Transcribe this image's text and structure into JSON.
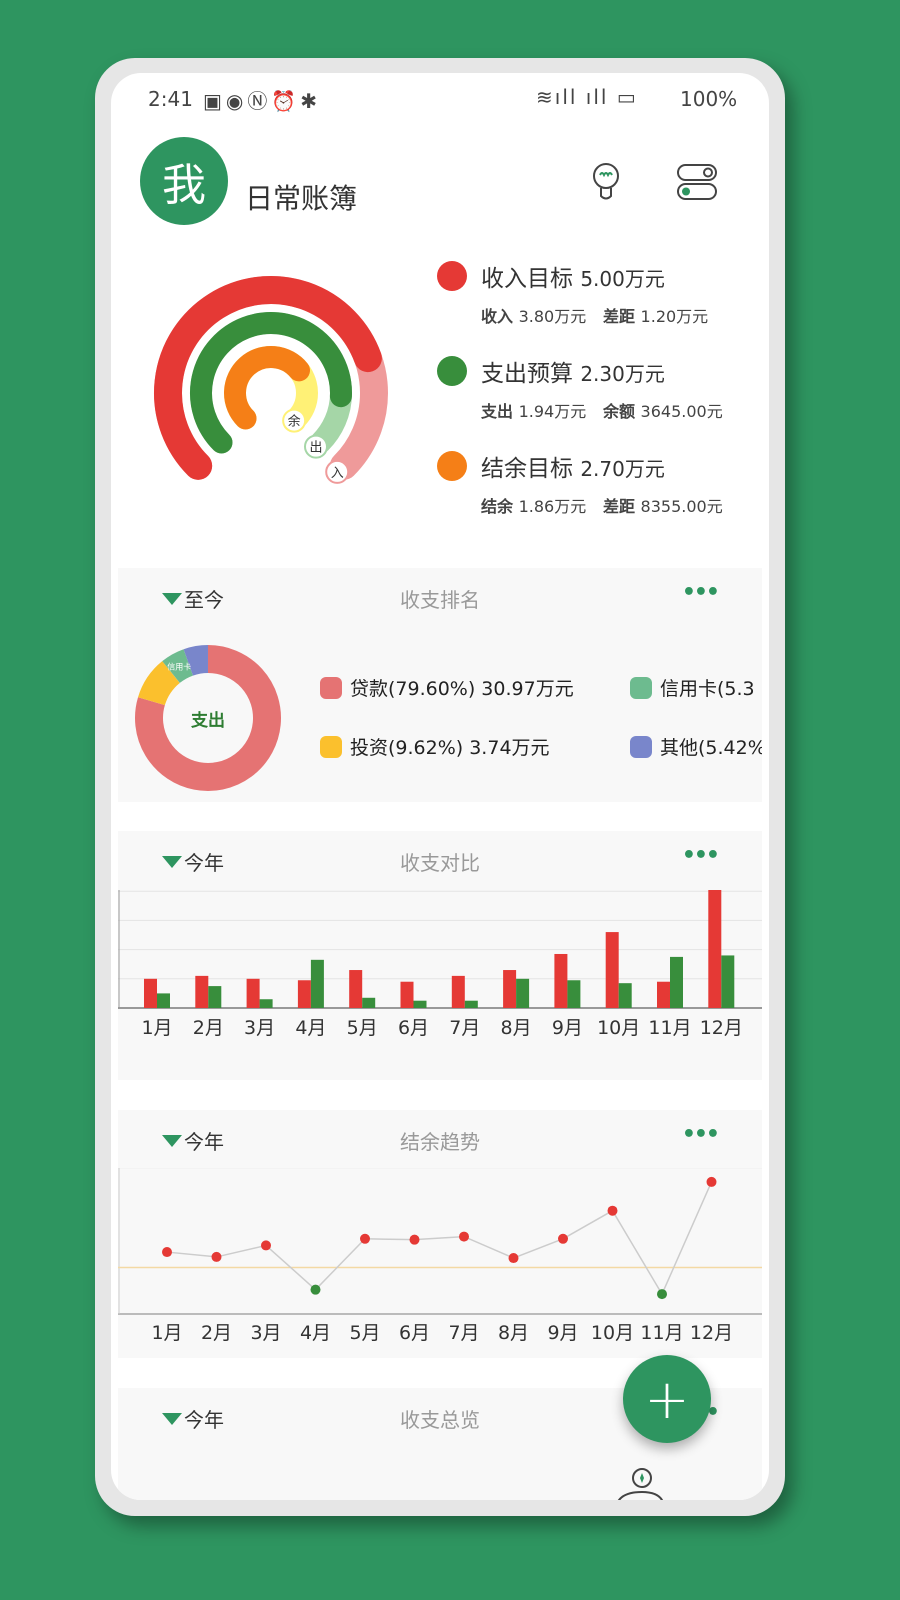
{
  "status_bar": {
    "time": "2:41",
    "battery": "100%",
    "icons": [
      "hmos-icon",
      "eye-icon",
      "nfc-icon",
      "alarm-icon",
      "bluetooth-icon",
      "wifi-icon",
      "signal-4g-icon",
      "signal-5g-icon",
      "battery-charging-icon"
    ]
  },
  "header": {
    "avatar": "我",
    "title": "日常账簿",
    "icons": [
      "lightbulb-icon",
      "toggle-settings-icon"
    ]
  },
  "colors": {
    "brand": "#2e9560",
    "income": "#e53935",
    "expense": "#388e3c",
    "balance": "#f57f17"
  },
  "goals": [
    {
      "label": "收入目标",
      "amount": "5.00万元",
      "sub1_label": "收入",
      "sub1_value": "3.80万元",
      "sub2_label": "差距",
      "sub2_value": "1.20万元",
      "ring_tag": "入",
      "progress": 0.76,
      "color": "#e53935",
      "light": "#ef9a9a"
    },
    {
      "label": "支出预算",
      "amount": "2.30万元",
      "sub1_label": "支出",
      "sub1_value": "1.94万元",
      "sub2_label": "余额",
      "sub2_value": "3645.00元",
      "ring_tag": "出",
      "progress": 0.843,
      "color": "#388e3c",
      "light": "#a5d6a7"
    },
    {
      "label": "结余目标",
      "amount": "2.70万元",
      "sub1_label": "结余",
      "sub1_value": "1.86万元",
      "sub2_label": "差距",
      "sub2_value": "8355.00元",
      "ring_tag": "余",
      "progress": 0.689,
      "color": "#f57f17",
      "light": "#fff176"
    }
  ],
  "ranking": {
    "period": "至今",
    "title": "收支排名",
    "center": "支出",
    "chart_data": {
      "type": "pie",
      "slices": [
        {
          "name": "贷款",
          "percent": 79.6,
          "color": "#e57373",
          "legend": "贷款(79.60%) 30.97万元"
        },
        {
          "name": "投资",
          "percent": 9.62,
          "color": "#fbc02d",
          "legend": "投资(9.62%) 3.74万元"
        },
        {
          "name": "信用卡",
          "percent": 5.36,
          "color": "#6dbb8f",
          "legend": "信用卡(5.3"
        },
        {
          "name": "其他",
          "percent": 5.42,
          "color": "#7986cb",
          "legend": "其他(5.42%"
        }
      ]
    }
  },
  "compare": {
    "period": "今年",
    "title": "收支对比",
    "chart_data": {
      "type": "bar",
      "categories": [
        "1月",
        "2月",
        "3月",
        "4月",
        "5月",
        "6月",
        "7月",
        "8月",
        "9月",
        "10月",
        "11月",
        "12月"
      ],
      "series": [
        {
          "color": "#e53935",
          "values": [
            1.0,
            1.1,
            1.0,
            0.95,
            1.3,
            0.9,
            1.1,
            1.3,
            1.85,
            2.6,
            0.9,
            4.5
          ]
        },
        {
          "color": "#388e3c",
          "values": [
            0.5,
            0.75,
            0.3,
            1.65,
            0.35,
            0.25,
            0.25,
            1.0,
            0.95,
            0.85,
            1.75,
            1.8
          ]
        }
      ],
      "ylim": [
        0,
        5
      ],
      "grid": true
    }
  },
  "trend": {
    "period": "今年",
    "title": "结余趋势",
    "chart_data": {
      "type": "line",
      "categories": [
        "1月",
        "2月",
        "3月",
        "4月",
        "5月",
        "6月",
        "7月",
        "8月",
        "9月",
        "10月",
        "11月",
        "12月"
      ],
      "values": [
        0.7,
        0.48,
        1.0,
        -1.0,
        1.3,
        1.26,
        1.4,
        0.43,
        1.3,
        2.57,
        -1.2,
        3.87
      ],
      "reference": 0,
      "ylim": [
        -2.1,
        4.5
      ],
      "positive_color": "#e53935",
      "negative_color": "#388e3c",
      "reference_color": "#f3d9a4"
    }
  },
  "overview": {
    "period": "今年",
    "title": "收支总览"
  },
  "fab": {
    "label": "+"
  },
  "more_label": "•••"
}
